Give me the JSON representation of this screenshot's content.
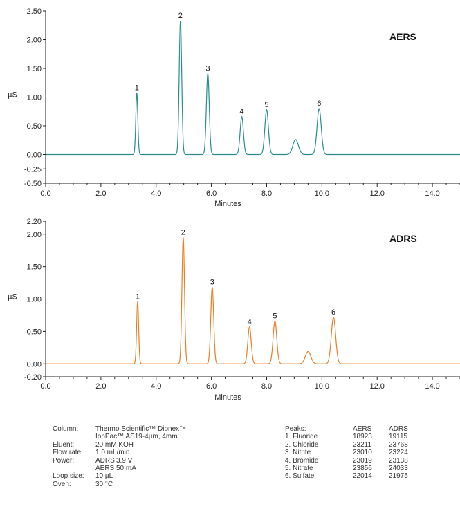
{
  "chart_data": [
    {
      "type": "line",
      "panel_label": "AERS",
      "xlabel": "Minutes",
      "ylabel": "µS",
      "xlim": [
        0,
        15
      ],
      "ylim": [
        -0.5,
        2.5
      ],
      "xticks": [
        "0.0",
        "2.0",
        "4.0",
        "6.0",
        "8.0",
        "10.0",
        "12.0",
        "14.0"
      ],
      "yticks": [
        "2.50",
        "2.00",
        "1.50",
        "1.00",
        "0.50",
        "0.00",
        "-0.25",
        "-0.50"
      ],
      "color": "#2a8c8c",
      "peaks": [
        {
          "label": "1",
          "x": 3.3,
          "y": 1.07
        },
        {
          "label": "2",
          "x": 4.88,
          "y": 2.33
        },
        {
          "label": "3",
          "x": 5.87,
          "y": 1.41
        },
        {
          "label": "4",
          "x": 7.1,
          "y": 0.66
        },
        {
          "label": "5",
          "x": 8.0,
          "y": 0.78
        },
        {
          "label": "",
          "x": 9.05,
          "y": 0.26
        },
        {
          "label": "6",
          "x": 9.9,
          "y": 0.8
        }
      ]
    },
    {
      "type": "line",
      "panel_label": "ADRS",
      "xlabel": "Minutes",
      "ylabel": "µS",
      "xlim": [
        0,
        15
      ],
      "ylim": [
        -0.2,
        2.2
      ],
      "xticks": [
        "0.0",
        "2.0",
        "4.0",
        "6.0",
        "8.0",
        "10.0",
        "12.0",
        "14.0"
      ],
      "yticks": [
        "2.20",
        "2.00",
        "1.50",
        "1.00",
        "0.50",
        "0.00",
        "-0.20"
      ],
      "color": "#ee7d22",
      "peaks": [
        {
          "label": "1",
          "x": 3.33,
          "y": 0.96
        },
        {
          "label": "2",
          "x": 4.98,
          "y": 1.95
        },
        {
          "label": "3",
          "x": 6.03,
          "y": 1.18
        },
        {
          "label": "4",
          "x": 7.38,
          "y": 0.57
        },
        {
          "label": "5",
          "x": 8.3,
          "y": 0.66
        },
        {
          "label": "",
          "x": 9.5,
          "y": 0.19
        },
        {
          "label": "6",
          "x": 10.42,
          "y": 0.72
        }
      ]
    }
  ],
  "conditions": [
    {
      "label": "Column:",
      "value": "Thermo Scientific™ Dionex™"
    },
    {
      "label": "",
      "value": "IonPac™ AS19-4µm, 4mm"
    },
    {
      "label": "Eluent:",
      "value": "20 mM KOH"
    },
    {
      "label": "Flow rate:",
      "value": "1.0 mL/min"
    },
    {
      "label": "Power:",
      "sub": "ADRS",
      "value": "3.9 V"
    },
    {
      "label": "",
      "sub": "AERS",
      "value": "50 mA"
    },
    {
      "label": "Loop size:",
      "value": "10 µL"
    },
    {
      "label": "Oven:",
      "value": "30 °C"
    }
  ],
  "peaks_table": {
    "header": [
      "Peaks:",
      "AERS",
      "ADRS"
    ],
    "rows": [
      [
        "1. Fluoride",
        "18923",
        "19115"
      ],
      [
        "2. Chloride",
        "23211",
        "23768"
      ],
      [
        "3. Nitrite",
        "23010",
        "23224"
      ],
      [
        "4. Bromide",
        "23019",
        "23138"
      ],
      [
        "5. Nitrate",
        "23856",
        "24033"
      ],
      [
        "6. Sulfate",
        "22014",
        "21975"
      ]
    ]
  }
}
